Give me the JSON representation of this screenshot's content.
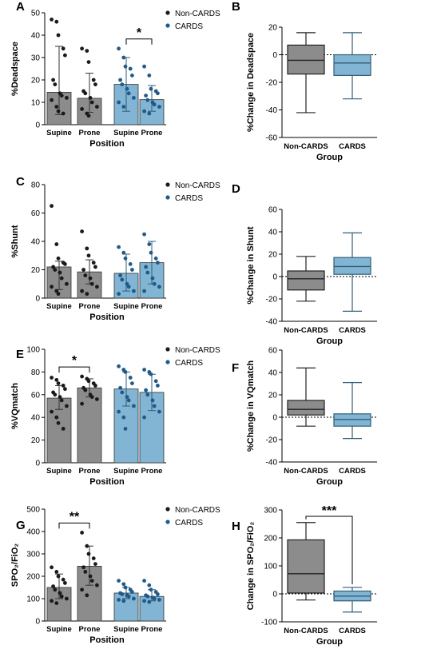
{
  "colors": {
    "noncards": "#8c8c8c",
    "cards": "#82b4d4",
    "noncards_dot": "#1a1a1a",
    "cards_dot": "#1f5a8a",
    "cards_whisker": "#2f5f77"
  },
  "legend": {
    "noncards": "Non-CARDS",
    "cards": "CARDS"
  },
  "chart_data": [
    {
      "panel": "A",
      "type": "bar",
      "ylabel": "%Deadspace",
      "xlabel": "Position",
      "ylim": [
        0,
        50
      ],
      "yticks": [
        0,
        10,
        20,
        30,
        40,
        50
      ],
      "categories": [
        "Supine",
        "Prone",
        "Supine",
        "Prone"
      ],
      "groups": [
        "Non-CARDS",
        "Non-CARDS",
        "CARDS",
        "CARDS"
      ],
      "values": [
        14.5,
        11.8,
        18,
        11.2
      ],
      "error_low": [
        4.5,
        5.5,
        6,
        6
      ],
      "error_high": [
        35,
        23,
        30,
        17.5
      ],
      "points": [
        [
          47,
          46,
          40,
          34,
          31,
          20,
          18,
          14,
          13,
          12,
          11,
          8,
          6,
          5
        ],
        [
          34,
          33,
          28,
          20,
          18,
          15,
          14,
          12,
          10,
          8,
          7,
          5,
          4
        ],
        [
          34,
          30,
          26,
          25,
          22,
          20,
          18,
          16,
          14,
          12,
          10,
          8
        ],
        [
          26,
          22,
          16,
          15,
          14,
          13,
          11,
          10,
          9,
          8,
          6,
          5
        ]
      ],
      "significance": [
        {
          "pair": [
            2,
            3
          ],
          "label": "*"
        }
      ]
    },
    {
      "panel": "B",
      "type": "box",
      "ylabel": "%Change in Deadspace",
      "xlabel": "Group",
      "ylim": [
        -60,
        20
      ],
      "yticks": [
        -60,
        -40,
        -20,
        0,
        20
      ],
      "categories": [
        "Non-CARDS",
        "CARDS"
      ],
      "boxes": [
        {
          "min": -42,
          "q1": -14,
          "median": -4,
          "q3": 7,
          "max": 16
        },
        {
          "min": -32,
          "q1": -15,
          "median": -6,
          "q3": 0,
          "max": 16
        }
      ]
    },
    {
      "panel": "C",
      "type": "bar",
      "ylabel": "%Shunt",
      "xlabel": "Position",
      "ylim": [
        0,
        80
      ],
      "yticks": [
        0,
        20,
        40,
        60,
        80
      ],
      "categories": [
        "Supine",
        "Prone",
        "Supine",
        "Prone"
      ],
      "groups": [
        "Non-CARDS",
        "Non-CARDS",
        "CARDS",
        "CARDS"
      ],
      "values": [
        22,
        18.5,
        17.5,
        25
      ],
      "error_low": [
        6,
        10,
        5,
        10
      ],
      "error_high": [
        26,
        27,
        31,
        40
      ],
      "points": [
        [
          65,
          38,
          28,
          25,
          24,
          22,
          20,
          18,
          14,
          10,
          8,
          5,
          3
        ],
        [
          47,
          35,
          30,
          25,
          22,
          20,
          16,
          14,
          10,
          8,
          5,
          3
        ],
        [
          36,
          32,
          28,
          24,
          20,
          16,
          13,
          10,
          8,
          5,
          3
        ],
        [
          45,
          38,
          32,
          28,
          25,
          22,
          18,
          14,
          10,
          8,
          5
        ]
      ],
      "significance": []
    },
    {
      "panel": "D",
      "type": "box",
      "ylabel": "%Change in Shunt",
      "xlabel": "Group",
      "ylim": [
        -40,
        60
      ],
      "yticks": [
        -40,
        -20,
        0,
        20,
        40,
        60
      ],
      "categories": [
        "Non-CARDS",
        "CARDS"
      ],
      "boxes": [
        {
          "min": -22,
          "q1": -12,
          "median": -2,
          "q3": 5,
          "max": 18
        },
        {
          "min": -31,
          "q1": 2,
          "median": 9,
          "q3": 17,
          "max": 39
        }
      ]
    },
    {
      "panel": "E",
      "type": "bar",
      "ylabel": "%VQmatch",
      "xlabel": "Position",
      "ylim": [
        0,
        100
      ],
      "yticks": [
        0,
        20,
        40,
        60,
        80,
        100
      ],
      "categories": [
        "Supine",
        "Prone",
        "Supine",
        "Prone"
      ],
      "groups": [
        "Non-CARDS",
        "Non-CARDS",
        "CARDS",
        "CARDS"
      ],
      "values": [
        57,
        66,
        65,
        62
      ],
      "error_low": [
        47,
        58,
        50,
        46
      ],
      "error_high": [
        68,
        74,
        80,
        78
      ],
      "points": [
        [
          75,
          73,
          70,
          68,
          65,
          62,
          60,
          58,
          55,
          50,
          45,
          40,
          35,
          30
        ],
        [
          76,
          74,
          72,
          70,
          68,
          66,
          64,
          60,
          58,
          56,
          52
        ],
        [
          85,
          82,
          80,
          75,
          70,
          66,
          62,
          58,
          55,
          50,
          45,
          40,
          30
        ],
        [
          82,
          80,
          78,
          72,
          68,
          64,
          60,
          55,
          50,
          45,
          40
        ]
      ],
      "significance": [
        {
          "pair": [
            0,
            1
          ],
          "label": "*"
        }
      ]
    },
    {
      "panel": "F",
      "type": "box",
      "ylabel": "%Change in VQmatch",
      "xlabel": "Group",
      "ylim": [
        -40,
        60
      ],
      "yticks": [
        -40,
        -20,
        0,
        20,
        40,
        60
      ],
      "categories": [
        "Non-CARDS",
        "CARDS"
      ],
      "boxes": [
        {
          "min": -8,
          "q1": 2,
          "median": 7,
          "q3": 15,
          "max": 44
        },
        {
          "min": -19,
          "q1": -8,
          "median": -2,
          "q3": 3,
          "max": 31
        }
      ]
    },
    {
      "panel": "G",
      "type": "bar",
      "ylabel": "SPO₂/FiO₂",
      "xlabel": "Position",
      "ylim": [
        0,
        500
      ],
      "yticks": [
        0,
        100,
        200,
        300,
        400,
        500
      ],
      "categories": [
        "Supine",
        "Prone",
        "Supine",
        "Prone"
      ],
      "groups": [
        "Non-CARDS",
        "Non-CARDS",
        "CARDS",
        "CARDS"
      ],
      "values": [
        150,
        245,
        125,
        110
      ],
      "error_low": [
        100,
        160,
        100,
        90
      ],
      "error_high": [
        210,
        335,
        150,
        140
      ],
      "points": [
        [
          240,
          220,
          200,
          185,
          170,
          155,
          140,
          125,
          110,
          100,
          90,
          80
        ],
        [
          395,
          335,
          300,
          280,
          255,
          240,
          220,
          200,
          180,
          160,
          140,
          115
        ],
        [
          180,
          165,
          150,
          140,
          130,
          125,
          120,
          115,
          110,
          100,
          95,
          90
        ],
        [
          180,
          160,
          140,
          130,
          120,
          115,
          110,
          105,
          100,
          95,
          90,
          85
        ]
      ],
      "significance": [
        {
          "pair": [
            0,
            1
          ],
          "label": "**"
        }
      ]
    },
    {
      "panel": "H",
      "type": "box",
      "ylabel": "Change in SPO₂/FiO₂",
      "xlabel": "Group",
      "ylim": [
        -100,
        300
      ],
      "yticks": [
        -100,
        0,
        100,
        200,
        300
      ],
      "categories": [
        "Non-CARDS",
        "CARDS"
      ],
      "boxes": [
        {
          "min": -22,
          "q1": 3,
          "median": 72,
          "q3": 193,
          "max": 255
        },
        {
          "min": -65,
          "q1": -25,
          "median": -8,
          "q3": 10,
          "max": 23
        }
      ],
      "significance": [
        {
          "pair": [
            0,
            1
          ],
          "label": "***"
        }
      ]
    }
  ]
}
